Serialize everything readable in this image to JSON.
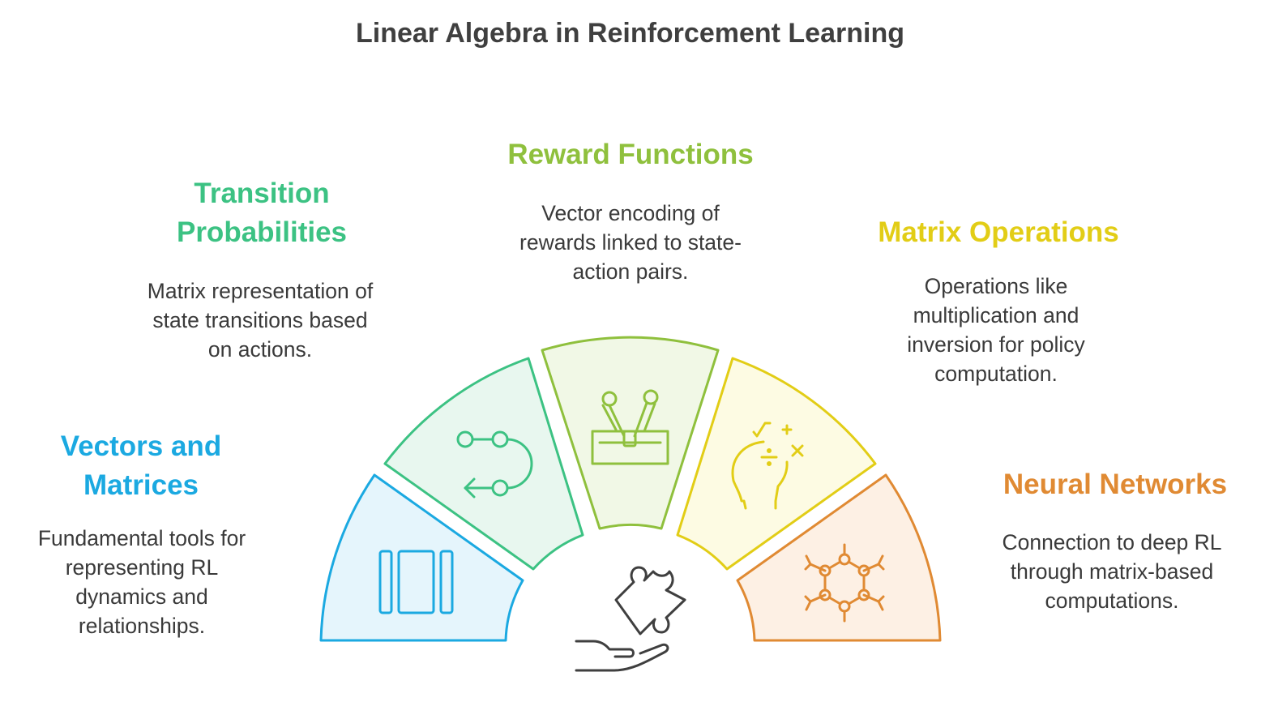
{
  "title": "Linear Algebra in Reinforcement Learning",
  "segments": [
    {
      "heading_lines": [
        "Vectors and",
        "Matrices"
      ],
      "desc_lines": [
        "Fundamental tools for",
        "representing RL",
        "dynamics and",
        "relationships."
      ],
      "color": "#1ba9e1",
      "fill": "#e5f5fc",
      "icon": "columns-icon"
    },
    {
      "heading_lines": [
        "Transition",
        "Probabilities"
      ],
      "desc_lines": [
        "Matrix representation of",
        "state transitions based",
        "on actions."
      ],
      "color": "#3cc283",
      "fill": "#e8f7ef",
      "icon": "flow-path-icon"
    },
    {
      "heading_lines": [
        "Reward Functions"
      ],
      "desc_lines": [
        "Vector encoding of",
        "rewards linked to state-",
        "action pairs."
      ],
      "color": "#8fc03d",
      "fill": "#f1f8e6",
      "icon": "tools-in-box-icon"
    },
    {
      "heading_lines": [
        "Matrix Operations"
      ],
      "desc_lines": [
        "Operations like",
        "multiplication and",
        "inversion for policy",
        "computation."
      ],
      "color": "#e2cd16",
      "fill": "#fdfbe3",
      "icon": "math-head-icon"
    },
    {
      "heading_lines": [
        "Neural Networks"
      ],
      "desc_lines": [
        "Connection to deep RL",
        "through matrix-based",
        "computations."
      ],
      "color": "#e08a33",
      "fill": "#fdf0e4",
      "icon": "molecule-network-icon"
    }
  ],
  "center_icon": "puzzle-hand-icon"
}
